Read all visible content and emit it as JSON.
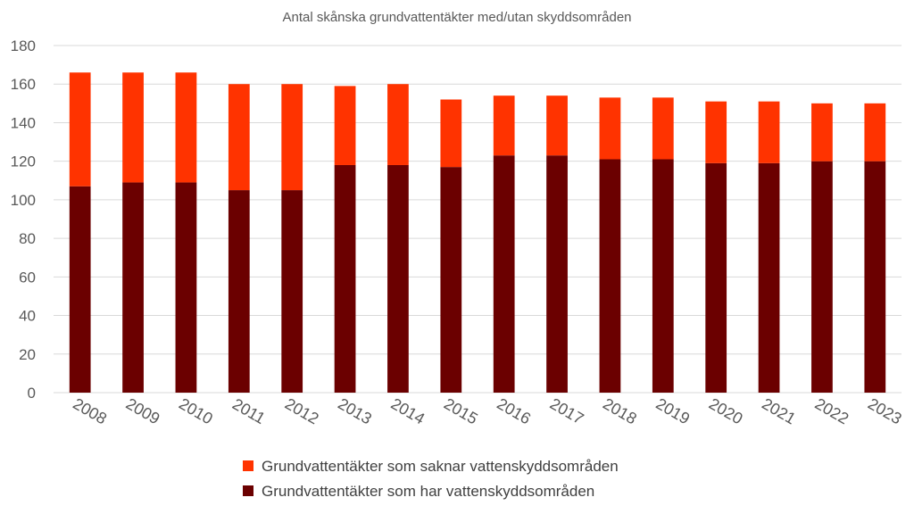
{
  "chart_data": {
    "type": "bar",
    "stacked": true,
    "title": "Antal skånska grundvattentäkter med/utan skyddsområden",
    "xlabel": "",
    "ylabel": "",
    "ylim": [
      0,
      180
    ],
    "yticks": [
      0,
      20,
      40,
      60,
      80,
      100,
      120,
      140,
      160,
      180
    ],
    "grid": true,
    "legend": "bottom",
    "categories": [
      "2008",
      "2009",
      "2010",
      "2011",
      "2012",
      "2013",
      "2014",
      "2015",
      "2016",
      "2017",
      "2018",
      "2019",
      "2020",
      "2021",
      "2022",
      "2023"
    ],
    "series": [
      {
        "name": "Grundvattentäkter som har vattenskyddsområden",
        "color": "#6b0000",
        "values": [
          107,
          109,
          109,
          105,
          105,
          118,
          118,
          117,
          123,
          123,
          121,
          121,
          119,
          119,
          120,
          120
        ]
      },
      {
        "name": "Grundvattentäkter som saknar vattenskyddsområden",
        "color": "#ff3300",
        "values": [
          59,
          57,
          57,
          55,
          55,
          41,
          42,
          35,
          31,
          31,
          32,
          32,
          32,
          32,
          30,
          30
        ]
      }
    ],
    "legend_order": [
      1,
      0
    ]
  }
}
